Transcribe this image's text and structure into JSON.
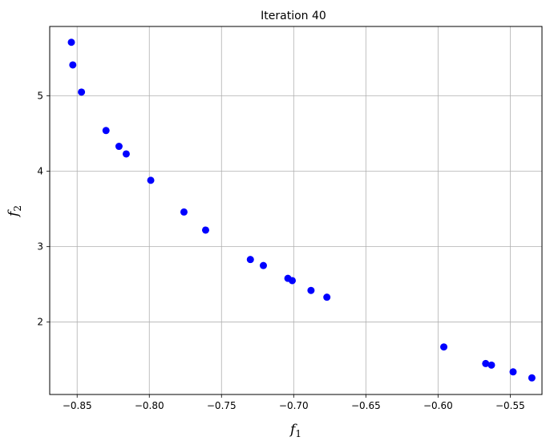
{
  "chart_data": {
    "type": "scatter",
    "title": "Iteration 40",
    "xlabel": "f",
    "xlabel_sub": "1",
    "ylabel": "f",
    "ylabel_sub": "2",
    "xlim": [
      -0.869,
      -0.528
    ],
    "ylim": [
      1.04,
      5.92
    ],
    "xticks": [
      -0.85,
      -0.8,
      -0.75,
      -0.7,
      -0.65,
      -0.6,
      -0.55
    ],
    "xtick_labels": [
      "−0.85",
      "−0.80",
      "−0.75",
      "−0.70",
      "−0.65",
      "−0.60",
      "−0.55"
    ],
    "yticks": [
      2,
      3,
      4,
      5
    ],
    "ytick_labels": [
      "2",
      "3",
      "4",
      "5"
    ],
    "grid": true,
    "marker_color": "#0000ff",
    "points": [
      {
        "x": -0.854,
        "y": 5.71
      },
      {
        "x": -0.853,
        "y": 5.41
      },
      {
        "x": -0.847,
        "y": 5.05
      },
      {
        "x": -0.83,
        "y": 4.54
      },
      {
        "x": -0.821,
        "y": 4.33
      },
      {
        "x": -0.816,
        "y": 4.23
      },
      {
        "x": -0.799,
        "y": 3.88
      },
      {
        "x": -0.776,
        "y": 3.46
      },
      {
        "x": -0.761,
        "y": 3.22
      },
      {
        "x": -0.73,
        "y": 2.83
      },
      {
        "x": -0.721,
        "y": 2.75
      },
      {
        "x": -0.704,
        "y": 2.58
      },
      {
        "x": -0.701,
        "y": 2.55
      },
      {
        "x": -0.688,
        "y": 2.42
      },
      {
        "x": -0.677,
        "y": 2.33
      },
      {
        "x": -0.596,
        "y": 1.67
      },
      {
        "x": -0.567,
        "y": 1.45
      },
      {
        "x": -0.563,
        "y": 1.43
      },
      {
        "x": -0.548,
        "y": 1.34
      },
      {
        "x": -0.535,
        "y": 1.26
      }
    ]
  }
}
